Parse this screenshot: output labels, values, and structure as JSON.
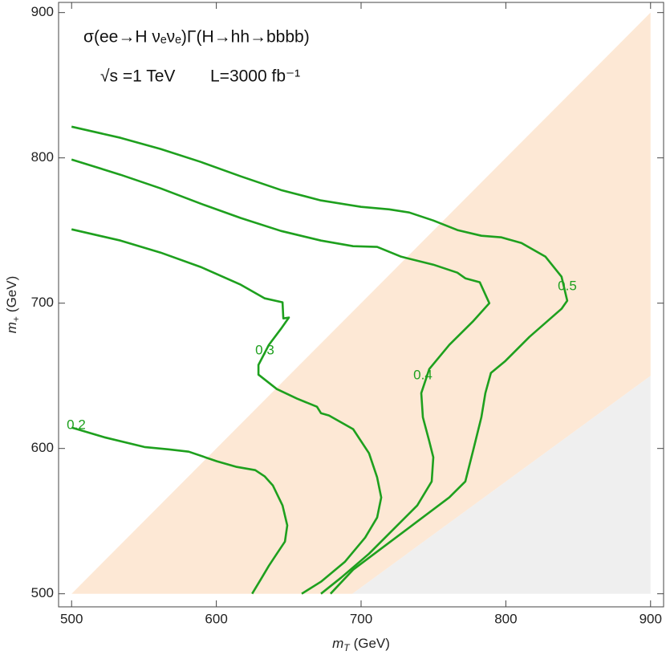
{
  "chart_data": {
    "type": "contour",
    "annotations": [
      "σ(ee→H νₑνₑ)Γ(H→hh→bbbb)",
      "√s =1 TeV",
      "L=3000 fb⁻¹"
    ],
    "xlabel": {
      "symbol": "m",
      "sub": "T",
      "unit": "(GeV)"
    },
    "ylabel": {
      "symbol": "m",
      "sub": "+",
      "unit": "(GeV)"
    },
    "xlim": [
      491,
      909
    ],
    "ylim": [
      491,
      907
    ],
    "xticks": [
      500,
      600,
      700,
      800,
      900
    ],
    "yticks": [
      500,
      600,
      700,
      800,
      900
    ],
    "regions": [
      {
        "color": "#fde8d5",
        "x": [
          500,
          900,
          900,
          694
        ],
        "y": [
          500,
          900,
          650,
          500
        ]
      },
      {
        "color": "#efefef",
        "x": [
          694,
          900,
          900
        ],
        "y": [
          500,
          650,
          500
        ]
      }
    ],
    "series": [
      {
        "name": "0.2",
        "color": "#1ea01e",
        "x": [
          500,
          522.7,
          550.4,
          567,
          580.9,
          600.3,
          614.1,
          626.9,
          633.5,
          639,
          645.7,
          649,
          647.4,
          641.8,
          636.3,
          630.7,
          624.7
        ],
        "y": [
          614.4,
          607.7,
          601,
          599.4,
          597.8,
          591.2,
          587.3,
          585.1,
          580.7,
          574.6,
          560.8,
          547,
          535.9,
          527.6,
          519.3,
          509.9,
          500
        ]
      },
      {
        "name": "0.3",
        "color": "#1ea01e",
        "x": [
          500,
          533.8,
          561.5,
          589.2,
          616.9,
          633.5,
          645.7,
          646.3,
          650.1,
          644.6,
          636.3,
          629.1,
          629.1,
          641.8,
          655.7,
          669.5,
          672.3,
          677.8,
          694.5,
          705.5,
          711.1,
          713.9,
          711.1,
          702.8,
          688.9,
          672.3,
          659
        ],
        "y": [
          750.8,
          743.1,
          734.8,
          724.9,
          712.7,
          703.3,
          700.6,
          689.5,
          690.1,
          682.3,
          671.3,
          657.5,
          650.8,
          640.9,
          634.3,
          628.7,
          624.3,
          622.7,
          613.3,
          596.7,
          580.1,
          566.3,
          552.5,
          538.7,
          522.1,
          508.3,
          500
        ]
      },
      {
        "name": "0.4",
        "color": "#1ea01e",
        "x": [
          500,
          533.8,
          561.5,
          589.2,
          616.9,
          644.6,
          672.3,
          694.5,
          711.1,
          727.7,
          749.9,
          766.5,
          772,
          782,
          788.6,
          777.6,
          761,
          747.1,
          741.6,
          742.7,
          747.1,
          749.9,
          748.8,
          738.8,
          722.2,
          705.5,
          686.1,
          672.3
        ],
        "y": [
          798.9,
          788.4,
          779,
          768.5,
          758.6,
          749.7,
          743.1,
          739.2,
          738.7,
          732,
          726.5,
          721,
          717.1,
          714.4,
          700,
          687.8,
          671.3,
          654.7,
          638.1,
          621.5,
          604.9,
          593.9,
          577.3,
          560.8,
          544.2,
          527.6,
          511,
          500
        ]
      },
      {
        "name": "0.5",
        "color": "#1ea01e",
        "x": [
          500,
          533.8,
          561.5,
          589.2,
          616.9,
          644.6,
          672.3,
          700,
          719.4,
          733.2,
          749.9,
          766.5,
          783.1,
          797,
          810.8,
          827.4,
          838.5,
          842.4,
          838.5,
          816.3,
          799.7,
          789.7,
          785.9,
          783.1,
          777.6,
          772,
          760.9,
          738.8,
          716.6,
          694.5,
          678.9
        ],
        "y": [
          821.5,
          813.8,
          806.1,
          797.2,
          787.3,
          777.9,
          770.7,
          766.3,
          764.6,
          762.4,
          756.9,
          750.3,
          746.4,
          745.3,
          741.4,
          732,
          718.2,
          701.7,
          696.1,
          676.8,
          660.2,
          652,
          638.1,
          621.5,
          599.4,
          577.3,
          566.3,
          549.7,
          533.1,
          516.6,
          500
        ]
      }
    ]
  }
}
